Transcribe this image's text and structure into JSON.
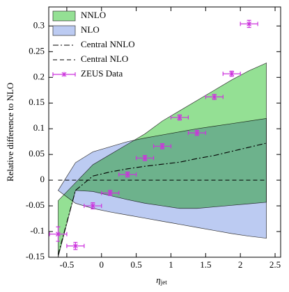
{
  "chart_data": {
    "type": "band-line",
    "ylabel": "Relative difference to NLO",
    "xlabel": "η",
    "xlabel_subscript": "jet",
    "xlim": [
      -0.76,
      2.58
    ],
    "ylim": [
      -0.15,
      0.337
    ],
    "xticks": [
      -0.5,
      0,
      0.5,
      1,
      1.5,
      2,
      2.5
    ],
    "yticks": [
      -0.15,
      -0.1,
      -0.05,
      0,
      0.05,
      0.1,
      0.15,
      0.2,
      0.25,
      0.3
    ],
    "legend": "upper left",
    "x": [
      -0.625,
      -0.375,
      -0.125,
      0.125,
      0.375,
      0.625,
      0.875,
      1.125,
      1.375,
      1.625,
      1.875,
      2.125,
      2.375
    ],
    "series": [
      {
        "name": "NNLO",
        "kind": "band",
        "color": "#94e094",
        "upper": [
          -0.04,
          -0.005,
          0.03,
          0.05,
          0.07,
          0.09,
          0.115,
          0.135,
          0.155,
          0.175,
          0.195,
          0.213,
          0.228
        ],
        "lower": [
          -0.15,
          -0.02,
          -0.022,
          -0.03,
          -0.038,
          -0.045,
          -0.05,
          -0.055,
          -0.055,
          -0.052,
          -0.049,
          -0.046,
          -0.043
        ]
      },
      {
        "name": "NLO",
        "kind": "band",
        "color": "#bccbf2",
        "upper": [
          -0.02,
          0.034,
          0.055,
          0.065,
          0.075,
          0.082,
          0.088,
          0.094,
          0.1,
          0.105,
          0.11,
          0.115,
          0.12
        ],
        "lower": [
          -0.02,
          -0.045,
          -0.055,
          -0.062,
          -0.068,
          -0.074,
          -0.08,
          -0.086,
          -0.092,
          -0.098,
          -0.104,
          -0.109,
          -0.113
        ]
      },
      {
        "name": "Central NNLO",
        "kind": "line",
        "dash": "8 3 2 3",
        "color": "#000000",
        "values": [
          -0.145,
          -0.02,
          0.008,
          0.016,
          0.022,
          0.027,
          0.031,
          0.035,
          0.042,
          0.048,
          0.056,
          0.064,
          0.072
        ]
      },
      {
        "name": "Central NLO",
        "kind": "line",
        "dash": "6 4",
        "color": "#000000",
        "values": [
          0,
          0,
          0,
          0,
          0,
          0,
          0,
          0,
          0,
          0,
          0,
          0,
          0
        ]
      },
      {
        "name": "ZEUS Data",
        "kind": "points",
        "color": "#cc33dd",
        "x": [
          -0.625,
          -0.375,
          -0.125,
          0.125,
          0.375,
          0.625,
          0.875,
          1.125,
          1.375,
          1.625,
          1.875,
          2.125
        ],
        "values": [
          -0.105,
          -0.128,
          -0.05,
          -0.025,
          0.011,
          0.043,
          0.066,
          0.122,
          0.092,
          0.162,
          0.207,
          0.304
        ],
        "xerr": [
          0.125,
          0.125,
          0.125,
          0.125,
          0.125,
          0.125,
          0.125,
          0.125,
          0.125,
          0.125,
          0.125,
          0.125
        ],
        "yerr": [
          0.014,
          0.007,
          0.006,
          0.005,
          0.005,
          0.005,
          0.005,
          0.005,
          0.005,
          0.005,
          0.005,
          0.007
        ]
      }
    ]
  }
}
